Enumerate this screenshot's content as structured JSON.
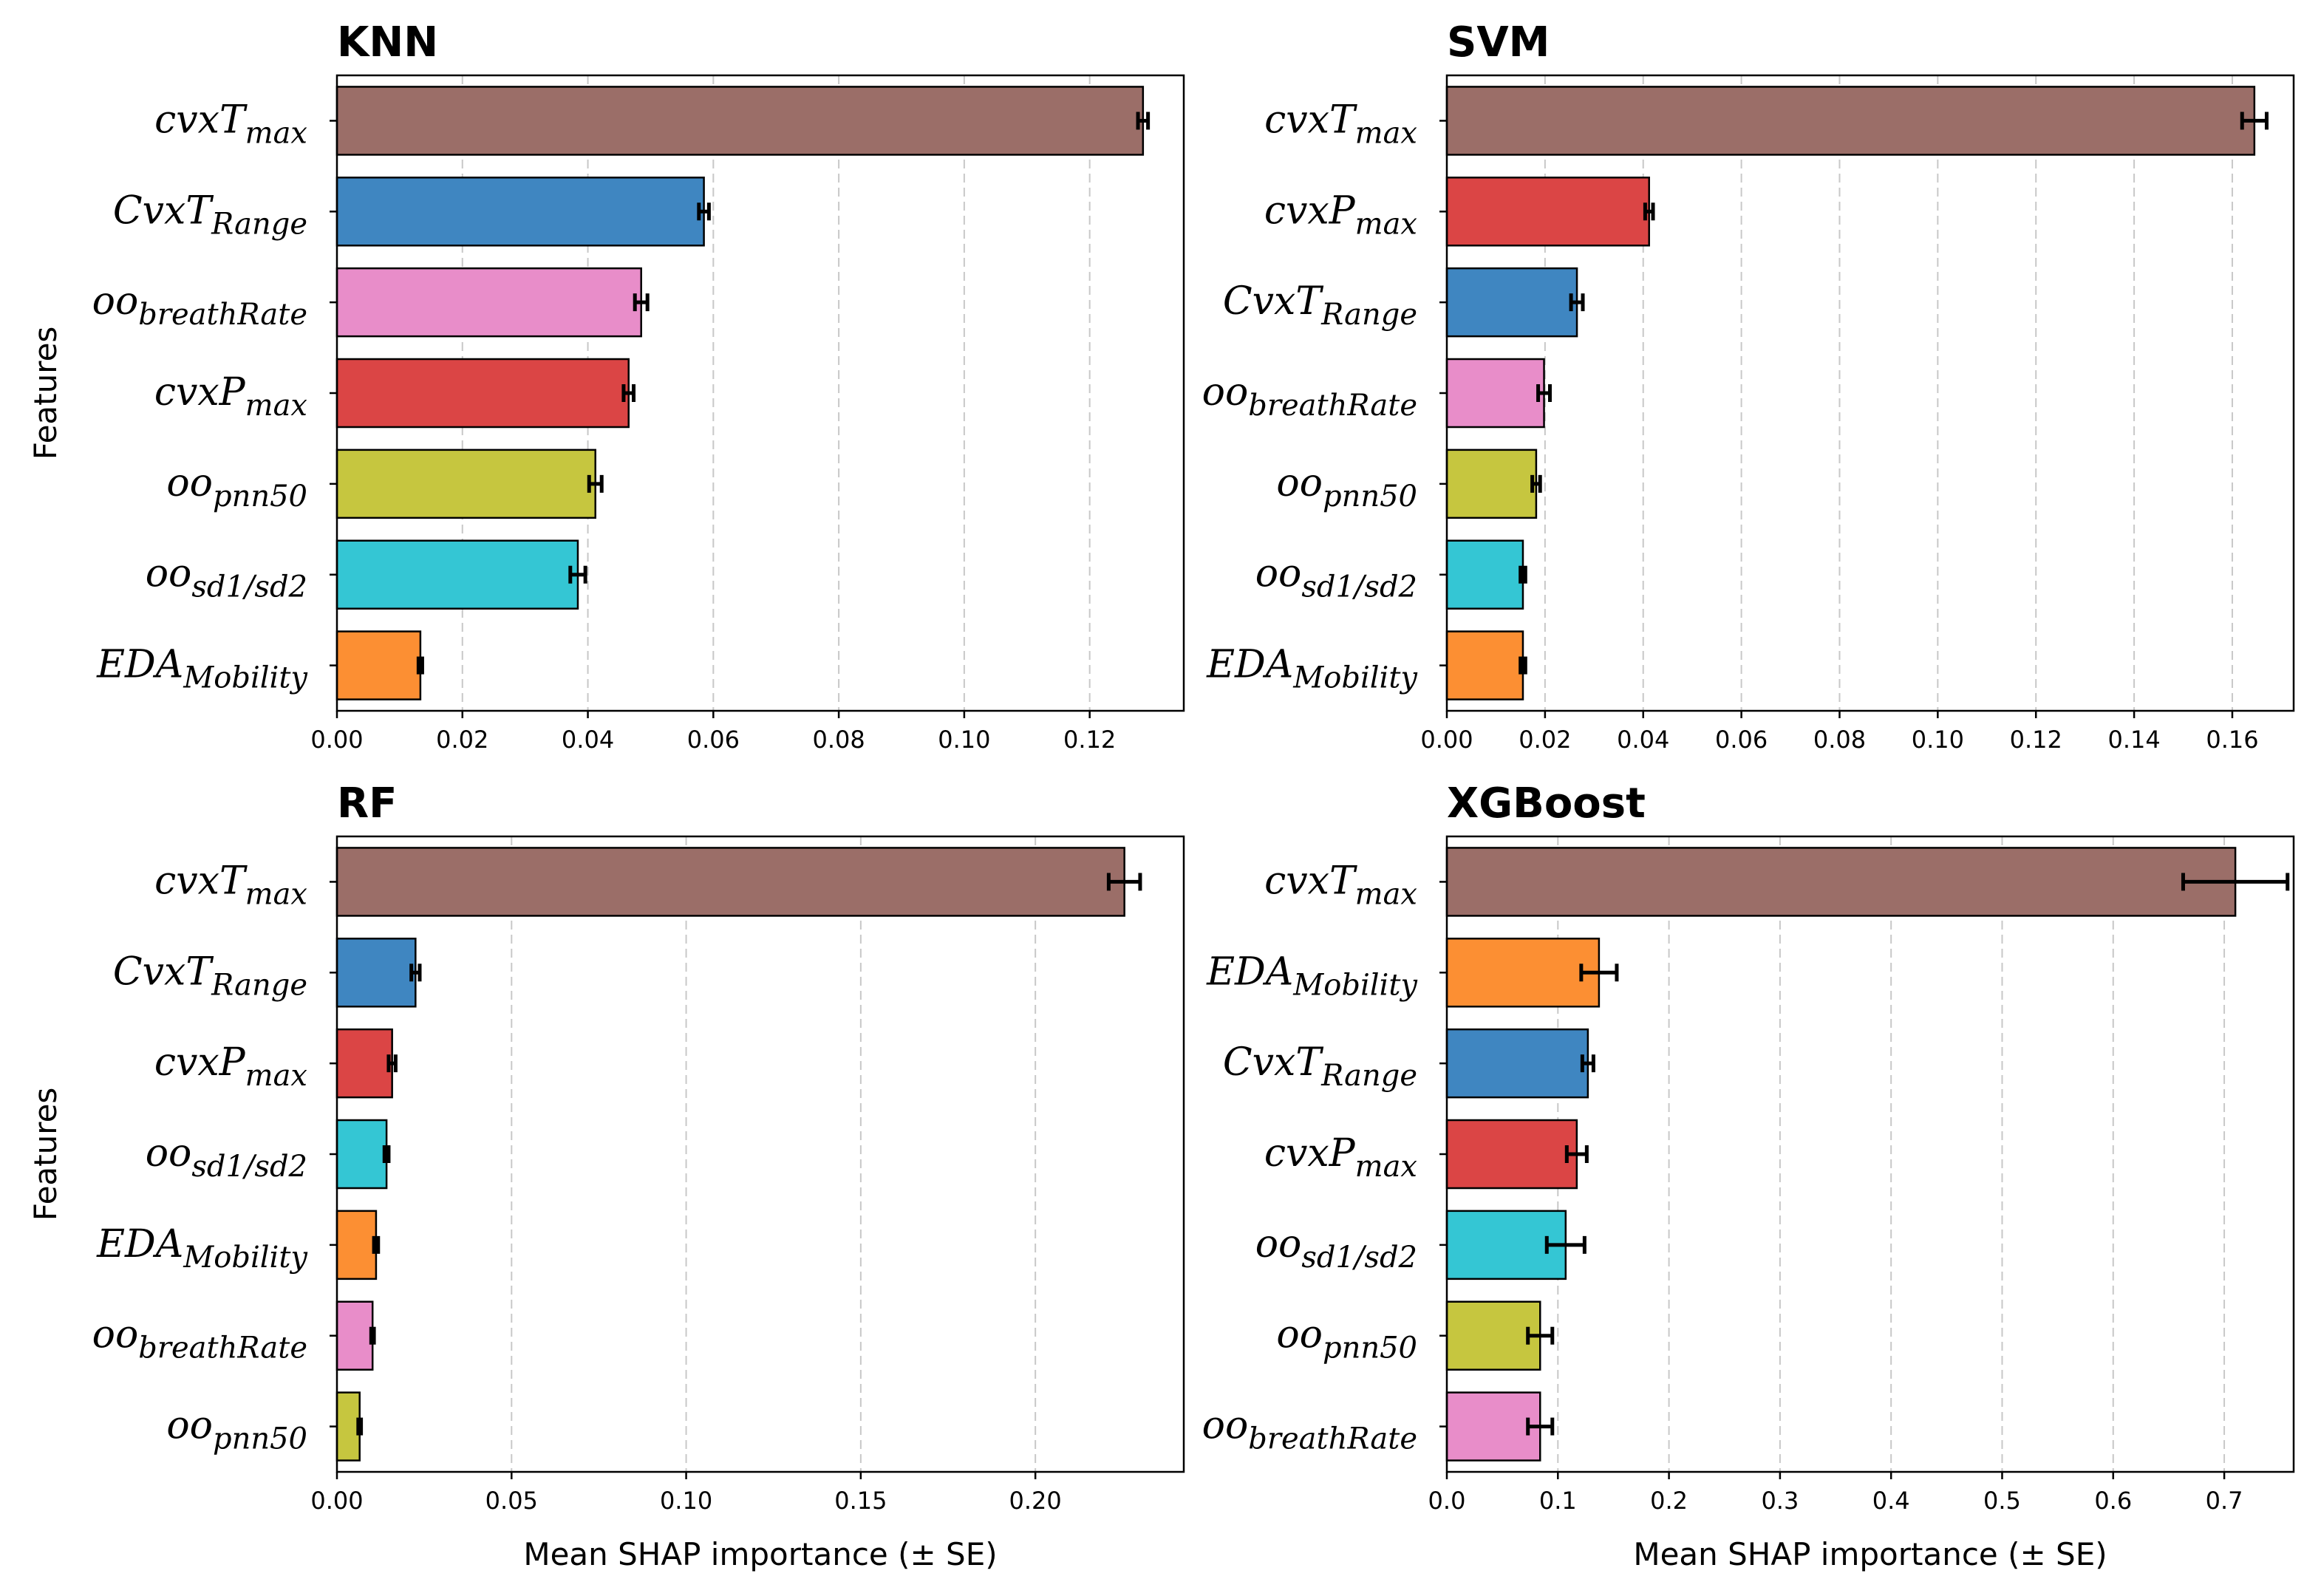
{
  "figure": {
    "y_axis_label": "Features",
    "x_axis_label": "Mean SHAP importance (± SE)"
  },
  "colors": {
    "cvxT_max": "#9b6e68",
    "CvxT_Range": "#3f86c1",
    "cvxP_max": "#db4545",
    "oo_breathRate": "#e88dc9",
    "oo_pnn50": "#c6c63f",
    "oo_sd1sd2": "#34c6d4",
    "EDA_Mobility": "#fc8f33"
  },
  "chart_data": [
    {
      "type": "bar",
      "orientation": "horizontal",
      "title": "KNN",
      "xlabel": "",
      "ylabel": "Features",
      "xlim": [
        0,
        0.135
      ],
      "xticks": [
        "0.00",
        "0.02",
        "0.04",
        "0.06",
        "0.08",
        "0.10",
        "0.12"
      ],
      "grid": "x-dashed",
      "bars": [
        {
          "key": "cvxT_max",
          "base": "cvxT",
          "sub": "max",
          "value": 0.1285,
          "se": 0.0008
        },
        {
          "key": "CvxT_Range",
          "base": "CvxT",
          "sub": "Range",
          "value": 0.0585,
          "se": 0.0008
        },
        {
          "key": "oo_breathRate",
          "base": "oo",
          "sub": "breathRate",
          "value": 0.0485,
          "se": 0.001
        },
        {
          "key": "cvxP_max",
          "base": "cvxP",
          "sub": "max",
          "value": 0.0465,
          "se": 0.0008
        },
        {
          "key": "oo_pnn50",
          "base": "oo",
          "sub": "pnn50",
          "value": 0.0412,
          "se": 0.001
        },
        {
          "key": "oo_sd1sd2",
          "base": "oo",
          "sub": "sd1/sd2",
          "value": 0.0384,
          "se": 0.0012
        },
        {
          "key": "EDA_Mobility",
          "base": "EDA",
          "sub": "Mobility",
          "value": 0.0133,
          "se": 0.0003
        }
      ]
    },
    {
      "type": "bar",
      "orientation": "horizontal",
      "title": "SVM",
      "xlabel": "",
      "ylabel": "",
      "xlim": [
        0,
        0.1725
      ],
      "xticks": [
        "0.00",
        "0.02",
        "0.04",
        "0.06",
        "0.08",
        "0.10",
        "0.12",
        "0.14",
        "0.16"
      ],
      "grid": "x-dashed",
      "bars": [
        {
          "key": "cvxT_max",
          "base": "cvxT",
          "sub": "max",
          "value": 0.1645,
          "se": 0.0025
        },
        {
          "key": "cvxP_max",
          "base": "cvxP",
          "sub": "max",
          "value": 0.0412,
          "se": 0.0008
        },
        {
          "key": "CvxT_Range",
          "base": "CvxT",
          "sub": "Range",
          "value": 0.0265,
          "se": 0.0012
        },
        {
          "key": "oo_breathRate",
          "base": "oo",
          "sub": "breathRate",
          "value": 0.0198,
          "se": 0.0012
        },
        {
          "key": "oo_pnn50",
          "base": "oo",
          "sub": "pnn50",
          "value": 0.0182,
          "se": 0.0008
        },
        {
          "key": "oo_sd1sd2",
          "base": "oo",
          "sub": "sd1/sd2",
          "value": 0.0155,
          "se": 0.0005
        },
        {
          "key": "EDA_Mobility",
          "base": "EDA",
          "sub": "Mobility",
          "value": 0.0155,
          "se": 0.0005
        }
      ]
    },
    {
      "type": "bar",
      "orientation": "horizontal",
      "title": "RF",
      "xlabel": "Mean SHAP importance (± SE)",
      "ylabel": "Features",
      "xlim": [
        0,
        0.2425
      ],
      "xticks": [
        "0.00",
        "0.05",
        "0.10",
        "0.15",
        "0.20"
      ],
      "grid": "x-dashed",
      "bars": [
        {
          "key": "cvxT_max",
          "base": "cvxT",
          "sub": "max",
          "value": 0.2255,
          "se": 0.0045
        },
        {
          "key": "CvxT_Range",
          "base": "CvxT",
          "sub": "Range",
          "value": 0.0225,
          "se": 0.0012
        },
        {
          "key": "cvxP_max",
          "base": "cvxP",
          "sub": "max",
          "value": 0.0158,
          "se": 0.001
        },
        {
          "key": "oo_sd1sd2",
          "base": "oo",
          "sub": "sd1/sd2",
          "value": 0.0142,
          "se": 0.0006
        },
        {
          "key": "EDA_Mobility",
          "base": "EDA",
          "sub": "Mobility",
          "value": 0.0112,
          "se": 0.0006
        },
        {
          "key": "oo_breathRate",
          "base": "oo",
          "sub": "breathRate",
          "value": 0.0102,
          "se": 0.0004
        },
        {
          "key": "oo_pnn50",
          "base": "oo",
          "sub": "pnn50",
          "value": 0.0065,
          "se": 0.0004
        }
      ]
    },
    {
      "type": "bar",
      "orientation": "horizontal",
      "title": "XGBoost",
      "xlabel": "Mean SHAP importance (± SE)",
      "ylabel": "",
      "xlim": [
        0,
        0.7625
      ],
      "xticks": [
        "0.0",
        "0.1",
        "0.2",
        "0.3",
        "0.4",
        "0.5",
        "0.6",
        "0.7"
      ],
      "grid": "x-dashed",
      "bars": [
        {
          "key": "cvxT_max",
          "base": "cvxT",
          "sub": "max",
          "value": 0.71,
          "se": 0.047
        },
        {
          "key": "EDA_Mobility",
          "base": "EDA",
          "sub": "Mobility",
          "value": 0.137,
          "se": 0.016
        },
        {
          "key": "CvxT_Range",
          "base": "CvxT",
          "sub": "Range",
          "value": 0.127,
          "se": 0.005
        },
        {
          "key": "cvxP_max",
          "base": "cvxP",
          "sub": "max",
          "value": 0.117,
          "se": 0.009
        },
        {
          "key": "oo_sd1sd2",
          "base": "oo",
          "sub": "sd1/sd2",
          "value": 0.107,
          "se": 0.017
        },
        {
          "key": "oo_pnn50",
          "base": "oo",
          "sub": "pnn50",
          "value": 0.084,
          "se": 0.011
        },
        {
          "key": "oo_breathRate",
          "base": "oo",
          "sub": "breathRate",
          "value": 0.084,
          "se": 0.011
        }
      ]
    }
  ]
}
